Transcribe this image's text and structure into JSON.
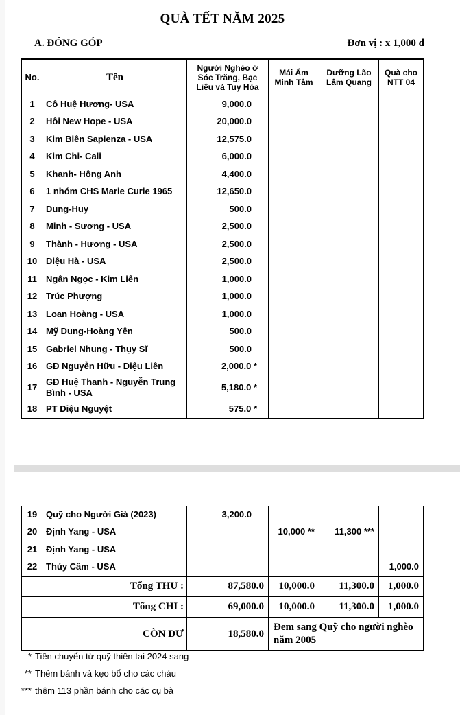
{
  "page": {
    "title": "QUÀ TẾT NĂM 2025",
    "section_label": "A. ĐÓNG GÓP",
    "unit_label": "Đơn vị :  x 1,000 đ"
  },
  "table": {
    "columns": [
      {
        "label": "No."
      },
      {
        "label": "Tên"
      },
      {
        "label": "Người Nghèo ở  Sóc Trăng, Bạc Liêu và Tuy Hòa"
      },
      {
        "label": "Mái Ấm Minh Tâm"
      },
      {
        "label": "Dưỡng Lão Lâm Quang"
      },
      {
        "label": "Quà cho NTT 04"
      }
    ],
    "rows": [
      {
        "no": "1",
        "name": "Cô Huệ Hương- USA",
        "ngheo": "9,000.0"
      },
      {
        "no": "2",
        "name": "Hôi New Hope - USA",
        "ngheo": "20,000.0"
      },
      {
        "no": "3",
        "name": "Kim Biên Sapienza - USA",
        "ngheo": "12,575.0"
      },
      {
        "no": "4",
        "name": "Kim Chi- Cali",
        "ngheo": "6,000.0"
      },
      {
        "no": "5",
        "name": "Khanh- Hông Anh",
        "ngheo": "4,400.0"
      },
      {
        "no": "6",
        "name": "1 nhóm CHS Marie Curie 1965",
        "ngheo": "12,650.0"
      },
      {
        "no": "7",
        "name": "Dung-Huy",
        "ngheo": "500.0"
      },
      {
        "no": "8",
        "name": "Minh - Sương - USA",
        "ngheo": "2,500.0"
      },
      {
        "no": "9",
        "name": "Thành - Hương - USA",
        "ngheo": "2,500.0"
      },
      {
        "no": "10",
        "name": "Diệu Hà - USA",
        "ngheo": "2,500.0"
      },
      {
        "no": "11",
        "name": "Ngân Ngọc - Kim Liên",
        "ngheo": "1,000.0"
      },
      {
        "no": "12",
        "name": "Trúc Phượng",
        "ngheo": "1,000.0"
      },
      {
        "no": "13",
        "name": "Loan Hoàng - USA",
        "ngheo": "1,000.0"
      },
      {
        "no": "14",
        "name": "Mỹ Dung-Hoàng Yên",
        "ngheo": "500.0"
      },
      {
        "no": "15",
        "name": "Gabriel Nhung - Thụy Sĩ",
        "ngheo": "500.0"
      },
      {
        "no": "16",
        "name": "GĐ Nguyễn Hữu - Diệu Liên",
        "ngheo": "2,000.0 *"
      },
      {
        "no": "17",
        "name": "GĐ Huệ Thanh - Nguyễn Trung Bình - USA",
        "ngheo": "5,180.0 *"
      },
      {
        "no": "18",
        "name": "PT Diệu Nguyệt",
        "ngheo": "575.0 *"
      }
    ],
    "rows2": [
      {
        "no": "19",
        "name": "Quỹ cho Người Già (2023)",
        "ngheo": "3,200.0"
      },
      {
        "no": "20",
        "name": "Định Yang - USA",
        "mai_am": "10,000 **",
        "duong_lao": "11,300 ***"
      },
      {
        "no": "21",
        "name": "Định Yang - USA"
      },
      {
        "no": "22",
        "name": "Thúy Câm - USA",
        "qua": "1,000.0"
      }
    ]
  },
  "totals": {
    "thu": {
      "label": "Tổng THU :",
      "ngheo": "87,580.0",
      "mai_am": "10,000.0",
      "duong_lao": "11,300.0",
      "qua": "1,000.0"
    },
    "chi": {
      "label": "Tổng CHI :",
      "ngheo": "69,000.0",
      "mai_am": "10,000.0",
      "duong_lao": "11,300.0",
      "qua": "1,000.0"
    },
    "con_du": {
      "label": "CÒN DƯ",
      "value": "18,580.0",
      "note": "Đem sang Quỹ cho người nghèo năm 2005"
    }
  },
  "footnotes": [
    {
      "marker": "*",
      "text": "Tiền chuyển từ quỹ thiên tai 2024 sang"
    },
    {
      "marker": "**",
      "text": "Thêm bánh và kẹo bổ cho các cháu"
    },
    {
      "marker": "***",
      "text": "thêm 113 phần bánh cho các cụ bà"
    }
  ]
}
